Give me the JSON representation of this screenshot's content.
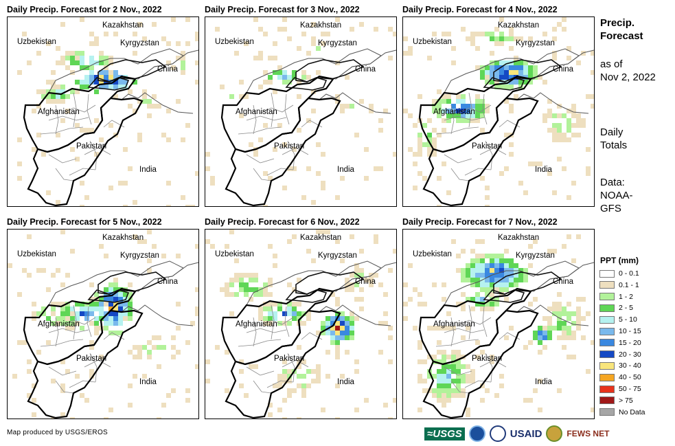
{
  "panels": [
    {
      "title": "Daily Precip. Forecast for 2 Nov., 2022",
      "intensity": [
        0,
        1,
        2,
        3,
        4,
        5,
        6,
        7,
        8
      ]
    },
    {
      "title": "Daily Precip. Forecast for 3 Nov., 2022",
      "intensity": [
        0,
        1,
        2,
        3,
        4,
        5,
        6
      ]
    },
    {
      "title": "Daily Precip. Forecast for 4 Nov., 2022",
      "intensity": [
        0,
        1,
        2,
        3,
        4,
        5,
        6,
        7,
        8,
        9,
        10
      ]
    },
    {
      "title": "Daily Precip. Forecast for 5 Nov., 2022",
      "intensity": [
        0,
        1,
        2,
        3,
        4,
        5,
        6,
        7,
        8,
        9
      ]
    },
    {
      "title": "Daily Precip. Forecast for 6 Nov., 2022",
      "intensity": [
        0,
        1,
        2,
        3,
        4,
        5,
        6,
        7,
        8,
        9,
        10
      ]
    },
    {
      "title": "Daily Precip. Forecast for 7 Nov., 2022",
      "intensity": [
        0,
        1,
        2,
        3,
        4,
        5,
        6,
        7,
        8
      ]
    }
  ],
  "labels": {
    "kazakhstan": "Kazakhstan",
    "uzbekistan": "Uzbekistan",
    "kyrgyzstan": "Kyrgyzstan",
    "china": "China",
    "afghanistan": "Afghanistan",
    "pakistan": "Pakistan",
    "india": "India"
  },
  "side": {
    "title_line1": "Precip.",
    "title_line2": "Forecast",
    "asof_line1": "as of",
    "asof_line2": "Nov 2, 2022",
    "daily_line1": "Daily",
    "daily_line2": "Totals",
    "data_line1": "Data:",
    "data_line2": "NOAA-",
    "data_line3": "GFS"
  },
  "legend": {
    "title": "PPT (mm)",
    "items": [
      {
        "label": "0 - 0.1",
        "color": "#ffffff"
      },
      {
        "label": "0.1 - 1",
        "color": "#eedfbf"
      },
      {
        "label": "1 - 2",
        "color": "#b2f29a"
      },
      {
        "label": "2 - 5",
        "color": "#5fd656"
      },
      {
        "label": "5 - 10",
        "color": "#b6f2f0"
      },
      {
        "label": "10 - 15",
        "color": "#7ab9ec"
      },
      {
        "label": "15 - 20",
        "color": "#3a88e0"
      },
      {
        "label": "20 - 30",
        "color": "#1549c4"
      },
      {
        "label": "30 - 40",
        "color": "#f8e57c"
      },
      {
        "label": "40 - 50",
        "color": "#f5a623"
      },
      {
        "label": "50 - 75",
        "color": "#e8331c"
      },
      {
        "label": "> 75",
        "color": "#a01818"
      },
      {
        "label": "No Data",
        "color": "#a6a6a6"
      }
    ]
  },
  "credit": "Map produced by USGS/EROS",
  "logos": {
    "usgs": "≈USGS",
    "usaid": "USAID",
    "fews": "FEWS NET"
  }
}
